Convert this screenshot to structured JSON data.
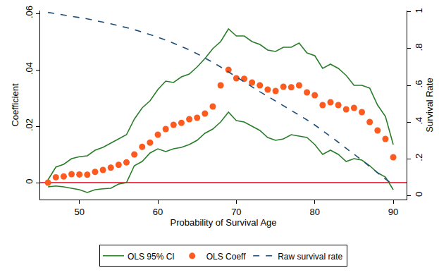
{
  "chart_data": {
    "type": "line",
    "xlabel": "Probability of Survival Age",
    "ylabel": "Coefficient",
    "y2label": "Survival Rate",
    "x": [
      46,
      47,
      48,
      49,
      50,
      51,
      52,
      53,
      54,
      55,
      56,
      57,
      58,
      59,
      60,
      61,
      62,
      63,
      64,
      65,
      66,
      67,
      68,
      69,
      70,
      71,
      72,
      73,
      74,
      75,
      76,
      77,
      78,
      79,
      80,
      81,
      82,
      83,
      84,
      85,
      86,
      87,
      88,
      89,
      90
    ],
    "xlim": [
      45,
      91.7
    ],
    "xticks": [
      50,
      60,
      70,
      80,
      90
    ],
    "ylim": [
      -0.006,
      0.061
    ],
    "yticks": [
      0,
      {
        "value": 0.02,
        "label": ".02"
      },
      {
        "value": 0.04,
        "label": ".04"
      },
      {
        "value": 0.06,
        "label": ".06"
      }
    ],
    "y2lim": [
      -0.022,
      1.007
    ],
    "y2ticks": [
      0,
      {
        "value": 0.2,
        "label": ".2"
      },
      {
        "value": 0.4,
        "label": ".4"
      },
      {
        "value": 0.6,
        "label": ".6"
      },
      {
        "value": 0.8,
        "label": ".8"
      },
      1
    ],
    "grid": false,
    "legend": "bottom",
    "reference_lines": [
      {
        "y": 0,
        "color": "#e8001c"
      }
    ],
    "series": [
      {
        "name": "OLS 95% CI",
        "type": "band",
        "color": "#2a7d2a",
        "line_style": "solid",
        "upper": [
          0.001,
          0.0055,
          0.0065,
          0.0085,
          0.0092,
          0.0095,
          0.0115,
          0.0125,
          0.014,
          0.0155,
          0.017,
          0.0225,
          0.0265,
          0.029,
          0.033,
          0.036,
          0.0355,
          0.0375,
          0.0385,
          0.041,
          0.044,
          0.0475,
          0.05,
          0.0545,
          0.052,
          0.052,
          0.05,
          0.049,
          0.047,
          0.0465,
          0.048,
          0.048,
          0.0495,
          0.046,
          0.045,
          0.0405,
          0.042,
          0.0405,
          0.038,
          0.0345,
          0.0345,
          0.0335,
          0.0275,
          0.0235,
          0.0135
        ],
        "lower": [
          -0.0015,
          -0.0012,
          -0.0015,
          -0.002,
          -0.0025,
          -0.0035,
          -0.0025,
          -0.0022,
          -0.002,
          -0.0005,
          0.0,
          0.006,
          0.0075,
          0.0105,
          0.012,
          0.011,
          0.012,
          0.0125,
          0.0135,
          0.015,
          0.0175,
          0.019,
          0.0215,
          0.025,
          0.022,
          0.0215,
          0.02,
          0.0185,
          0.016,
          0.015,
          0.0155,
          0.017,
          0.0165,
          0.016,
          0.0135,
          0.01,
          0.0115,
          0.01,
          0.0075,
          0.0085,
          0.008,
          0.006,
          0.0035,
          0.002,
          -0.0025
        ]
      },
      {
        "name": "OLS Coeff",
        "type": "scatter",
        "marker": "circle",
        "color": "#fc5a1e",
        "values": [
          0.0,
          0.0019,
          0.0022,
          0.003,
          0.0029,
          0.0028,
          0.0038,
          0.0045,
          0.0053,
          0.0063,
          0.0072,
          0.01,
          0.0127,
          0.0142,
          0.017,
          0.019,
          0.0205,
          0.0212,
          0.0225,
          0.023,
          0.0245,
          0.027,
          0.0345,
          0.04,
          0.037,
          0.0368,
          0.0355,
          0.0345,
          0.033,
          0.0325,
          0.034,
          0.0338,
          0.0345,
          0.032,
          0.031,
          0.0275,
          0.0285,
          0.0275,
          0.026,
          0.0265,
          0.025,
          0.0215,
          0.0185,
          0.0155,
          0.009
        ]
      },
      {
        "name": "Raw survival rate",
        "type": "line",
        "line_style": "dash",
        "color": "#1f4e79",
        "axis": "y2",
        "values": [
          0.997,
          0.99,
          0.983,
          0.977,
          0.97,
          0.962,
          0.953,
          0.945,
          0.935,
          0.925,
          0.915,
          0.903,
          0.89,
          0.877,
          0.862,
          0.847,
          0.83,
          0.812,
          0.793,
          0.772,
          0.75,
          0.725,
          0.7,
          0.673,
          0.645,
          0.617,
          0.59,
          0.565,
          0.54,
          0.515,
          0.49,
          0.465,
          0.44,
          0.412,
          0.384,
          0.354,
          0.322,
          0.29,
          0.258,
          0.225,
          0.192,
          0.158,
          0.123,
          0.09,
          0.06
        ]
      }
    ]
  }
}
